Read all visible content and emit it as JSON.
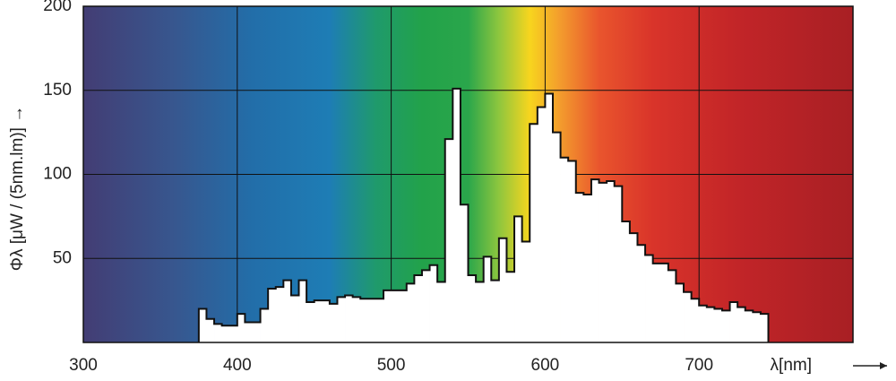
{
  "chart_data": {
    "type": "histogram",
    "x_label": "λ[nm]",
    "y_label": "Φλ [μW / (5nm.lm)] →",
    "bins": [
      375,
      380,
      385,
      390,
      395,
      400,
      405,
      410,
      415,
      420,
      425,
      430,
      435,
      440,
      445,
      450,
      455,
      460,
      465,
      470,
      475,
      480,
      485,
      490,
      495,
      500,
      505,
      510,
      515,
      520,
      525,
      530,
      535,
      540,
      545,
      550,
      555,
      560,
      565,
      570,
      575,
      580,
      585,
      590,
      595,
      600,
      605,
      610,
      615,
      620,
      625,
      630,
      635,
      640,
      645,
      650,
      655,
      660,
      665,
      670,
      675,
      680,
      685,
      690,
      695,
      700,
      705,
      710,
      715,
      720,
      725,
      730,
      735,
      740,
      745
    ],
    "values": [
      20,
      14,
      11,
      10,
      10,
      17,
      12,
      12,
      20,
      32,
      33,
      37,
      28,
      37,
      24,
      25,
      25,
      23,
      27,
      28,
      27,
      26,
      26,
      26,
      31,
      31,
      31,
      35,
      40,
      43,
      46,
      36,
      121,
      151,
      82,
      40,
      36,
      51,
      37,
      62,
      42,
      75,
      60,
      130,
      140,
      148,
      125,
      110,
      108,
      89,
      88,
      97,
      95,
      96,
      93,
      72,
      65,
      58,
      52,
      47,
      47,
      43,
      35,
      30,
      26,
      22,
      21,
      20,
      19,
      24,
      21,
      19,
      18,
      17
    ],
    "color": "#ffffff",
    "xlim": [
      300,
      800
    ],
    "ylim": [
      0,
      200
    ],
    "xticks": [
      300,
      400,
      500,
      600,
      700
    ],
    "yticks": [
      50,
      100,
      150,
      200
    ],
    "grid": true
  }
}
